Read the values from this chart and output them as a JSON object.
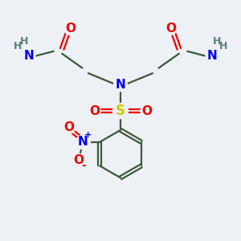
{
  "bg_color": "#edf0f4",
  "atom_colors": {
    "C": "#3a3a3a",
    "H": "#5a8080",
    "N": "#0000ee",
    "O": "#ee0000",
    "S": "#cccc00"
  },
  "bond_color": "#3a5a3a",
  "bond_lw": 1.6
}
